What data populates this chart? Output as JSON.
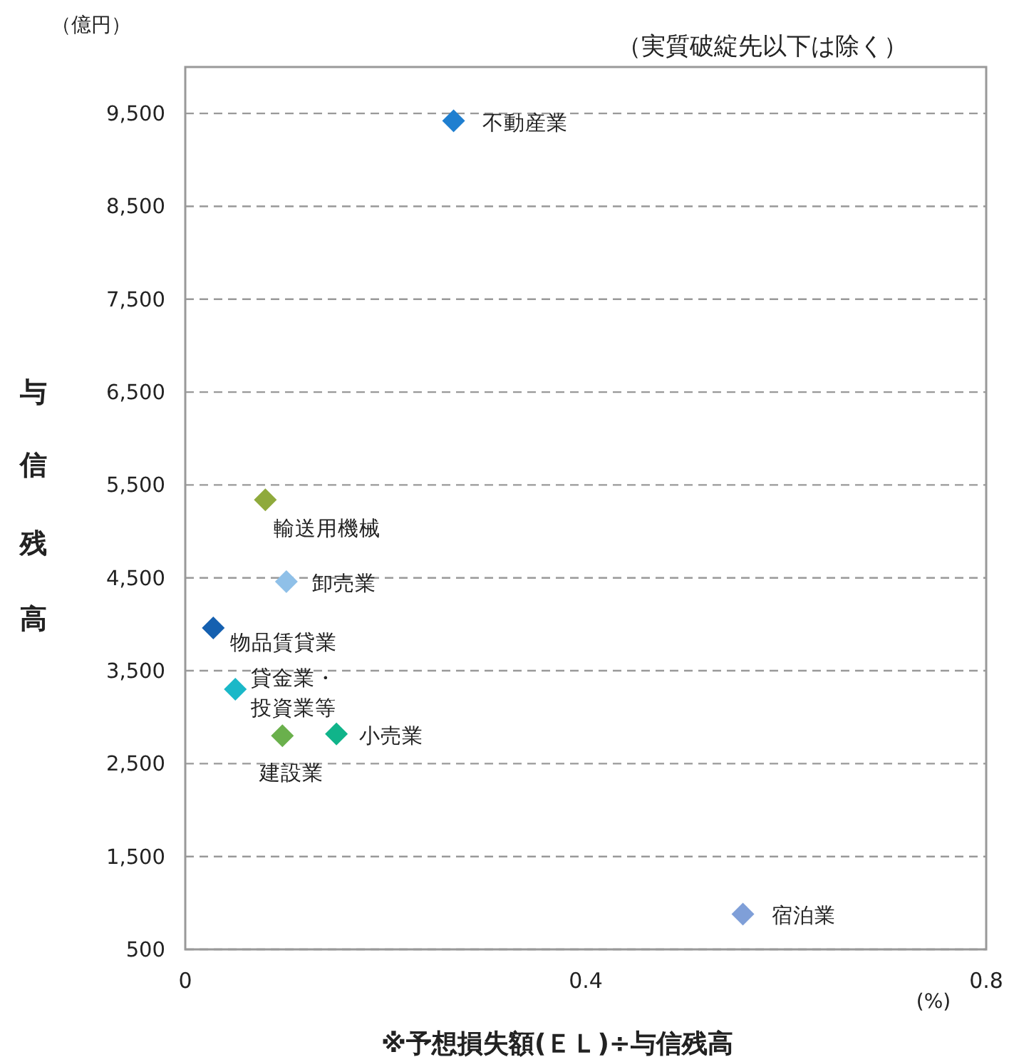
{
  "chart_data": {
    "type": "scatter",
    "subtitle": "（実質破綻先以下は除く）",
    "xlabel": "※予想損失額(ＥＬ)÷与信残高",
    "ylabel": "与信残高",
    "annotations": [
      "（億円）",
      "(%)"
    ],
    "xlim": [
      0,
      0.8
    ],
    "xticks": [
      0,
      0.4,
      0.8
    ],
    "ylim": [
      500,
      10000
    ],
    "yticks": [
      {
        "value": 500,
        "label": "500"
      },
      {
        "value": 1500,
        "label": "1,500"
      },
      {
        "value": 2500,
        "label": "2,500"
      },
      {
        "value": 3500,
        "label": "3,500"
      },
      {
        "value": 4500,
        "label": "4,500"
      },
      {
        "value": 5500,
        "label": "5,500"
      },
      {
        "value": 6500,
        "label": "6,500"
      },
      {
        "value": 7500,
        "label": "7,500"
      },
      {
        "value": 8500,
        "label": "8,500"
      },
      {
        "value": 9500,
        "label": "9,500"
      }
    ],
    "grid": "y",
    "marker": "diamond",
    "legend": false,
    "series": [
      {
        "name": "不動産業",
        "color": "#1f7fd0",
        "x": [
          0.268
        ],
        "values": [
          9420
        ]
      },
      {
        "name": "輸送用機械",
        "color": "#8faa3c",
        "x": [
          0.08
        ],
        "values": [
          5340
        ]
      },
      {
        "name": "卸売業",
        "color": "#8fc0e8",
        "x": [
          0.101
        ],
        "values": [
          4460
        ]
      },
      {
        "name": "物品賃貸業",
        "color": "#1560b0",
        "x": [
          0.028
        ],
        "values": [
          3960
        ]
      },
      {
        "name": "貸金業・投資業等",
        "color": "#1ab8c8",
        "x": [
          0.05
        ],
        "values": [
          3300
        ]
      },
      {
        "name": "建設業",
        "color": "#6ab04c",
        "x": [
          0.097
        ],
        "values": [
          2800
        ]
      },
      {
        "name": "小売業",
        "color": "#10b48a",
        "x": [
          0.151
        ],
        "values": [
          2820
        ]
      },
      {
        "name": "宿泊業",
        "color": "#7f9fd8",
        "x": [
          0.557
        ],
        "values": [
          880
        ]
      }
    ]
  }
}
